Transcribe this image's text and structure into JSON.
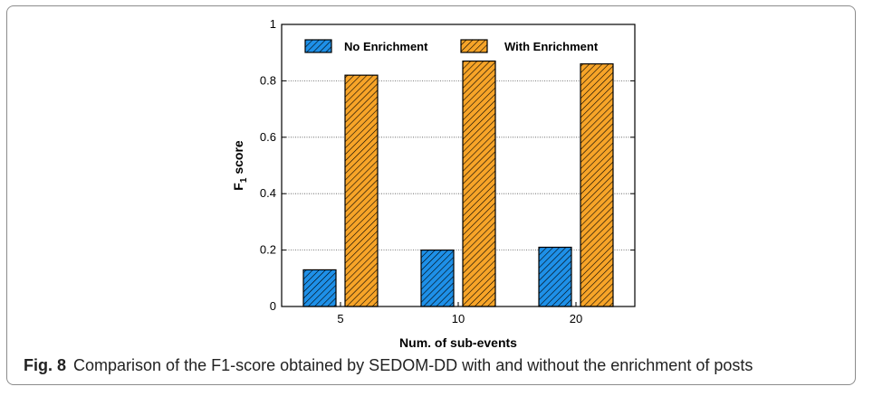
{
  "figure": {
    "label": "Fig. 8",
    "caption": "Comparison of the F1-score obtained by SEDOM-DD with and without the enrichment of posts"
  },
  "chart_data": {
    "type": "bar",
    "categories": [
      "5",
      "10",
      "20"
    ],
    "series": [
      {
        "name": "No Enrichment",
        "values": [
          0.13,
          0.2,
          0.21
        ],
        "color": "#1e90e8"
      },
      {
        "name": "With Enrichment",
        "values": [
          0.82,
          0.87,
          0.86
        ],
        "color": "#f7a428"
      }
    ],
    "title": "",
    "xlabel": "Num. of sub-events",
    "ylabel_main": "F",
    "ylabel_sub": "1",
    "ylabel_rest": " score",
    "ylim": [
      0,
      1
    ],
    "yticks": [
      "0",
      "0.2",
      "0.4",
      "0.6",
      "0.8",
      "1"
    ],
    "grid": true,
    "legend_position": "top"
  }
}
